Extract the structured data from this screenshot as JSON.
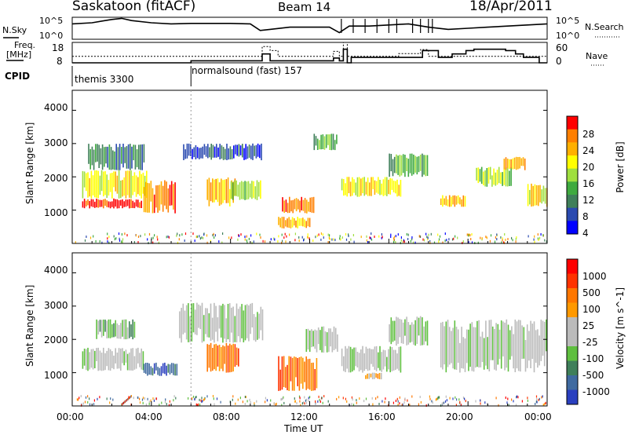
{
  "header": {
    "station": "Saskatoon (fitACF)",
    "beam": "Beam 14",
    "date": "18/Apr/2011"
  },
  "colors": {
    "power_scale": [
      "#0000ff",
      "#2a4ab0",
      "#3f7f5a",
      "#3faa3f",
      "#9fdf3f",
      "#ffff00",
      "#ffb000",
      "#ff7f00",
      "#ff0000"
    ],
    "velocity_scale": [
      "#2a3fbf",
      "#3f6aa0",
      "#3f7f5a",
      "#5fbf3f",
      "#bbbbbb",
      "#bbbbbb",
      "#ff9900",
      "#ff7700",
      "#ff3300",
      "#ff0000"
    ]
  },
  "chart_data": [
    {
      "type": "line",
      "panel": "noise",
      "left_label": [
        "N.Sky"
      ],
      "right_label": [
        "N.Search"
      ],
      "left_ticks": [
        "10^5",
        "10^0"
      ],
      "right_ticks": [
        "10^5",
        "10^0"
      ],
      "x_hours": [
        0,
        1,
        2,
        2.5,
        3,
        4,
        5,
        6,
        7,
        8,
        9,
        9.5,
        10,
        11,
        12,
        13,
        13.5,
        14,
        15,
        16,
        17,
        18,
        19,
        20,
        21,
        22,
        23,
        24
      ],
      "sky_level": [
        0.7,
        0.75,
        0.9,
        0.95,
        0.85,
        0.75,
        0.7,
        0.72,
        0.72,
        0.72,
        0.7,
        0.4,
        0.45,
        0.55,
        0.55,
        0.55,
        0.3,
        0.6,
        0.6,
        0.65,
        0.7,
        0.55,
        0.45,
        0.5,
        0.55,
        0.6,
        0.65,
        0.7
      ]
    },
    {
      "type": "line",
      "panel": "frequency",
      "left_label": [
        "Freq.",
        "[MHz]"
      ],
      "right_label": [
        "Nave"
      ],
      "left_ticks": [
        "18",
        "8"
      ],
      "right_ticks": [
        "60",
        "0"
      ],
      "frequency_mhz": [
        [
          0,
          11.2
        ],
        [
          6,
          11.2
        ],
        [
          9.6,
          11.2
        ],
        [
          9.6,
          16
        ],
        [
          10,
          16
        ],
        [
          10,
          14
        ],
        [
          10.4,
          14
        ],
        [
          10.4,
          11.2
        ],
        [
          13.2,
          11.2
        ],
        [
          13.2,
          13.6
        ],
        [
          13.5,
          13.6
        ],
        [
          13.5,
          11.2
        ],
        [
          13.7,
          11.2
        ],
        [
          13.7,
          18
        ],
        [
          13.9,
          18
        ],
        [
          13.9,
          11.2
        ],
        [
          16.5,
          11.2
        ],
        [
          16.5,
          12.5
        ],
        [
          17.6,
          12.5
        ],
        [
          17.6,
          14.5
        ],
        [
          18,
          14.5
        ],
        [
          18,
          11.2
        ],
        [
          24,
          11.2
        ]
      ],
      "nave": [
        [
          0,
          0
        ],
        [
          4,
          0
        ],
        [
          6,
          0
        ],
        [
          6,
          6
        ],
        [
          9.6,
          6
        ],
        [
          9.6,
          26
        ],
        [
          10,
          26
        ],
        [
          10,
          6
        ],
        [
          13.2,
          6
        ],
        [
          13.2,
          14
        ],
        [
          13.5,
          14
        ],
        [
          13.5,
          6
        ],
        [
          13.7,
          6
        ],
        [
          13.7,
          40
        ],
        [
          13.9,
          40
        ],
        [
          13.9,
          0
        ],
        [
          14.1,
          0
        ],
        [
          14.1,
          16
        ],
        [
          17.7,
          16
        ],
        [
          17.7,
          36
        ],
        [
          18.5,
          36
        ],
        [
          18.5,
          16
        ],
        [
          19.2,
          16
        ],
        [
          19.2,
          26
        ],
        [
          19.9,
          26
        ],
        [
          19.9,
          36
        ],
        [
          20.3,
          36
        ],
        [
          20.3,
          40
        ],
        [
          21.9,
          40
        ],
        [
          21.9,
          36
        ],
        [
          22.4,
          36
        ],
        [
          22.4,
          26
        ],
        [
          22.8,
          26
        ],
        [
          22.8,
          16
        ],
        [
          23.6,
          16
        ],
        [
          23.6,
          0
        ],
        [
          24,
          0
        ]
      ]
    },
    {
      "type": "table",
      "panel": "cpid",
      "label": "CPID",
      "segments": [
        {
          "start": 0,
          "end": 6,
          "text": "themis 3300"
        },
        {
          "start": 6,
          "end": 24,
          "text": "normalsound (fast) 157"
        }
      ]
    },
    {
      "type": "heatmap",
      "panel": "power",
      "ylabel": "Slant Range [km]",
      "yticks": [
        "1000",
        "2000",
        "3000",
        "4000"
      ],
      "ylim": [
        0,
        4600
      ],
      "colorbar_label": "Power [dB]",
      "colorbar_ticks": [
        "28",
        "24",
        "20",
        "16",
        "12",
        "8",
        "4"
      ],
      "regions": [
        {
          "x0": 0.5,
          "x1": 3.5,
          "y0": 1050,
          "y1": 1350,
          "level": 8
        },
        {
          "x0": 0.5,
          "x1": 3.8,
          "y0": 1350,
          "y1": 2200,
          "level": 5
        },
        {
          "x0": 0.8,
          "x1": 3.6,
          "y0": 2200,
          "y1": 3000,
          "level": 2
        },
        {
          "x0": 3.6,
          "x1": 5.2,
          "y0": 900,
          "y1": 1900,
          "level": 7
        },
        {
          "x0": 5.6,
          "x1": 9.6,
          "y0": 2500,
          "y1": 3000,
          "level": 1
        },
        {
          "x0": 6.8,
          "x1": 8.2,
          "y0": 1100,
          "y1": 2000,
          "level": 6
        },
        {
          "x0": 8.0,
          "x1": 9.5,
          "y0": 1300,
          "y1": 1900,
          "level": 4
        },
        {
          "x0": 10.6,
          "x1": 12.2,
          "y0": 900,
          "y1": 1400,
          "level": 7
        },
        {
          "x0": 10.4,
          "x1": 12.0,
          "y0": 450,
          "y1": 800,
          "level": 6
        },
        {
          "x0": 12.2,
          "x1": 13.4,
          "y0": 2800,
          "y1": 3300,
          "level": 3
        },
        {
          "x0": 13.6,
          "x1": 16.6,
          "y0": 1400,
          "y1": 2000,
          "level": 5
        },
        {
          "x0": 16.0,
          "x1": 18.0,
          "y0": 2000,
          "y1": 2700,
          "level": 3
        },
        {
          "x0": 18.6,
          "x1": 19.9,
          "y0": 1100,
          "y1": 1450,
          "level": 6
        },
        {
          "x0": 20.4,
          "x1": 22.2,
          "y0": 1700,
          "y1": 2300,
          "level": 4
        },
        {
          "x0": 21.8,
          "x1": 22.9,
          "y0": 2200,
          "y1": 2600,
          "level": 6
        },
        {
          "x0": 23.0,
          "x1": 24.0,
          "y0": 1100,
          "y1": 1800,
          "level": 5
        }
      ]
    },
    {
      "type": "heatmap",
      "panel": "velocity",
      "ylabel": "Slant Range [km]",
      "yticks": [
        "1000",
        "2000",
        "3000",
        "4000"
      ],
      "ylim": [
        0,
        4600
      ],
      "colorbar_label": "Velocity [m s^-1]",
      "colorbar_ticks": [
        "1000",
        "500",
        "100",
        "25",
        "-25",
        "-100",
        "-500",
        "-1000"
      ],
      "regions": [
        {
          "x0": 0.5,
          "x1": 3.6,
          "y0": 1050,
          "y1": 1750,
          "level": 4
        },
        {
          "x0": 1.2,
          "x1": 3.2,
          "y0": 2000,
          "y1": 2600,
          "level": 3
        },
        {
          "x0": 3.6,
          "x1": 5.3,
          "y0": 900,
          "y1": 1300,
          "level": 1
        },
        {
          "x0": 5.4,
          "x1": 9.6,
          "y0": 1900,
          "y1": 3100,
          "level": 4
        },
        {
          "x0": 6.8,
          "x1": 8.4,
          "y0": 1000,
          "y1": 1900,
          "level": 7
        },
        {
          "x0": 10.4,
          "x1": 12.4,
          "y0": 450,
          "y1": 1500,
          "level": 7
        },
        {
          "x0": 11.8,
          "x1": 13.4,
          "y0": 1600,
          "y1": 2400,
          "level": 4
        },
        {
          "x0": 13.6,
          "x1": 16.6,
          "y0": 1000,
          "y1": 1800,
          "level": 4
        },
        {
          "x0": 14.8,
          "x1": 15.6,
          "y0": 800,
          "y1": 1000,
          "level": 6
        },
        {
          "x0": 16.0,
          "x1": 18.0,
          "y0": 1800,
          "y1": 2700,
          "level": 4
        },
        {
          "x0": 18.6,
          "x1": 24.0,
          "y0": 1000,
          "y1": 2600,
          "level": 4
        }
      ]
    },
    {
      "type": "table",
      "panel": "time_axis",
      "xlabel": "Time UT",
      "xticks": [
        "00:00",
        "04:00",
        "08:00",
        "12:00",
        "16:00",
        "20:00",
        "00:00"
      ],
      "xlim": [
        0,
        24
      ]
    }
  ]
}
